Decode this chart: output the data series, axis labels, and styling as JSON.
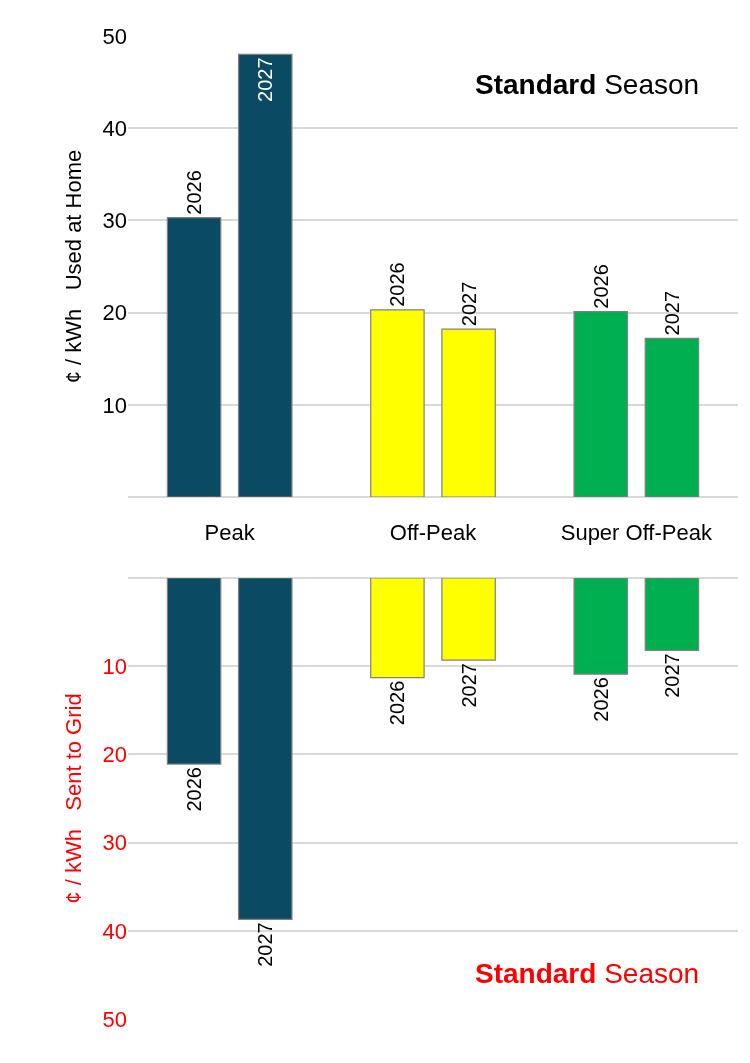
{
  "chart_data": [
    {
      "type": "bar",
      "title": "Standard Season",
      "ylabel": "¢ / kWh   Used at Home",
      "categories": [
        null,
        null,
        null
      ],
      "series": [
        {
          "name": "2026",
          "colors": [
            "#0a4a63",
            "#ffff00",
            "#00b050"
          ],
          "values": [
            30.3,
            20.3,
            20.1
          ]
        },
        {
          "name": "2027",
          "colors": [
            "#0a4a63",
            "#ffff00",
            "#00b050"
          ],
          "values": [
            48.0,
            18.2,
            17.2
          ]
        }
      ],
      "ylim": [
        0,
        50
      ],
      "yticks": [
        {
          "value": 0,
          "label": null
        },
        10,
        20,
        30,
        40,
        50
      ],
      "grid": "y",
      "tick_labels": "y"
    },
    {
      "type": "bar",
      "title": "Standard Season",
      "ylabel": "¢ / kWh   Sent to Grid",
      "categories": [
        "Peak",
        "Off-Peak",
        "Super Off-Peak"
      ],
      "series": [
        {
          "name": "2026",
          "colors": [
            "#0a4a63",
            "#ffff00",
            "#00b050"
          ],
          "values": [
            21.1,
            11.3,
            10.9
          ]
        },
        {
          "name": "2027",
          "colors": [
            "#0a4a63",
            "#ffff00",
            "#00b050"
          ],
          "values": [
            38.7,
            9.3,
            8.2
          ]
        }
      ],
      "ylim": [
        50,
        0
      ],
      "yticks": [
        {
          "value": 0,
          "label": null
        },
        10,
        20,
        30,
        40,
        50
      ],
      "grid": "y"
    }
  ]
}
